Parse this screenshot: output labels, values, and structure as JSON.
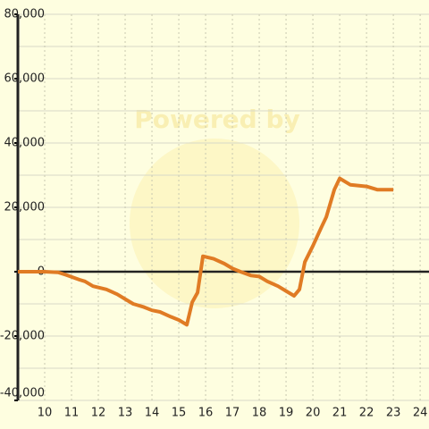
{
  "chart_data": {
    "type": "line",
    "watermark": "Powered by",
    "x": [
      9,
      10,
      10.5,
      10.8,
      11.3,
      11.5,
      11.8,
      12.3,
      12.7,
      13,
      13.3,
      13.7,
      14,
      14.3,
      14.7,
      15,
      15.3,
      15.5,
      15.7,
      15.9,
      16.3,
      16.7,
      17,
      17.3,
      17.7,
      18,
      18.3,
      18.7,
      19,
      19.3,
      19.5,
      19.7,
      20,
      20.3,
      20.5,
      20.8,
      21,
      21.4,
      22,
      22.4,
      23
    ],
    "series": [
      {
        "color": "#e07b24",
        "values": [
          0,
          0,
          -200,
          -1000,
          -2500,
          -3000,
          -4500,
          -5500,
          -7000,
          -8500,
          -10000,
          -11000,
          -12000,
          -12500,
          -14000,
          -15000,
          -16500,
          -9500,
          -6500,
          4800,
          4000,
          2500,
          1000,
          0,
          -1200,
          -1500,
          -3000,
          -4500,
          -6000,
          -7500,
          -5500,
          3000,
          8000,
          13500,
          17000,
          25500,
          29000,
          27000,
          26500,
          25500,
          25500
        ]
      }
    ],
    "xlim": [
      9,
      24.33
    ],
    "xticks": [
      10,
      11,
      12,
      13,
      14,
      15,
      16,
      17,
      18,
      19,
      20,
      21,
      22,
      23,
      24
    ],
    "ylim": [
      -40000,
      80000
    ],
    "yticks": [
      {
        "value": -40000,
        "label": "-40,000"
      },
      {
        "value": -20000,
        "label": "-20,000"
      },
      0,
      {
        "value": 20000,
        "label": "20,000"
      },
      {
        "value": 40000,
        "label": "40,000"
      },
      {
        "value": 60000,
        "label": "60,000"
      },
      {
        "value": 80000,
        "label": "80,000"
      }
    ],
    "grid": true
  }
}
